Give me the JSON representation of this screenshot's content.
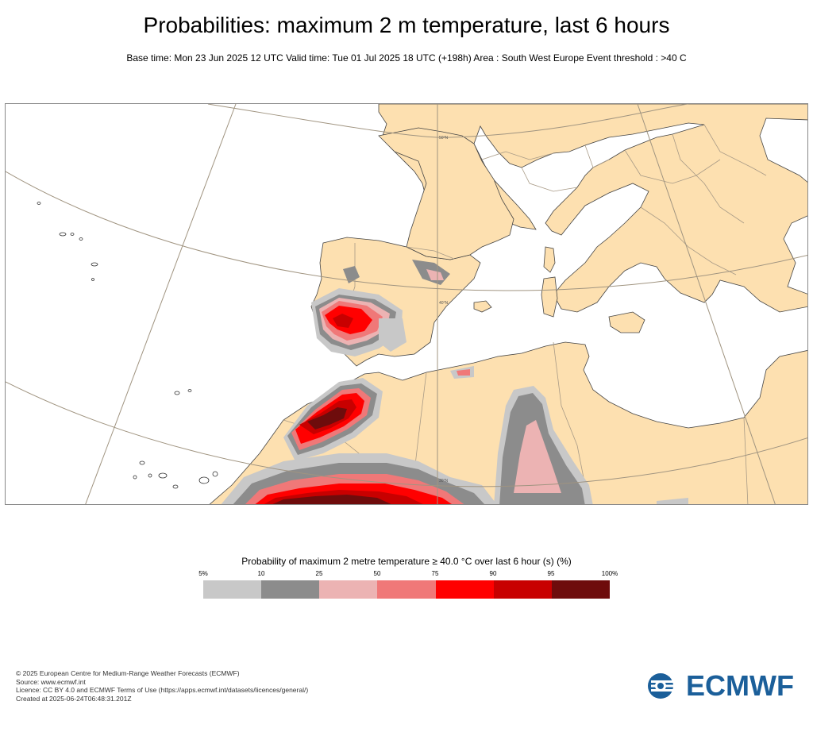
{
  "title": "Probabilities: maximum 2 m temperature, last 6 hours",
  "subtitle": "Base time: Mon 23 Jun 2025 12 UTC Valid time: Tue 01 Jul 2025 18 UTC (+198h) Area : South West Europe Event threshold : >40 C",
  "map": {
    "lat_labels": [
      "50°N",
      "40°N",
      "30°N"
    ],
    "colors": {
      "land": "#fde0b0",
      "sea": "#ffffff",
      "border": "#a89a86",
      "coast": "#333333",
      "graticule": "#a09480"
    }
  },
  "legend": {
    "title": "Probability of maximum 2 metre temperature ≥ 40.0 °C over last 6 hour (s) (%)",
    "ticks": [
      "5%",
      "10",
      "25",
      "50",
      "75",
      "90",
      "95",
      "100%"
    ],
    "colors": [
      "#c8c8c8",
      "#8c8c8c",
      "#ecb3b3",
      "#f07878",
      "#ff0000",
      "#c80000",
      "#6e0c0c"
    ]
  },
  "footer": {
    "line1": "© 2025 European Centre for Medium-Range Weather Forecasts (ECMWF)",
    "line2": "Source: www.ecmwf.int",
    "line3": "Licence: CC BY 4.0 and ECMWF Terms of Use (https://apps.ecmwf.int/datasets/licences/general/)",
    "line4": "Created at 2025-06-24T06:48:31.201Z"
  },
  "logo": {
    "text": "ECMWF",
    "color": "#1b5f9a",
    "icon": "ecmwf-logo-icon"
  }
}
